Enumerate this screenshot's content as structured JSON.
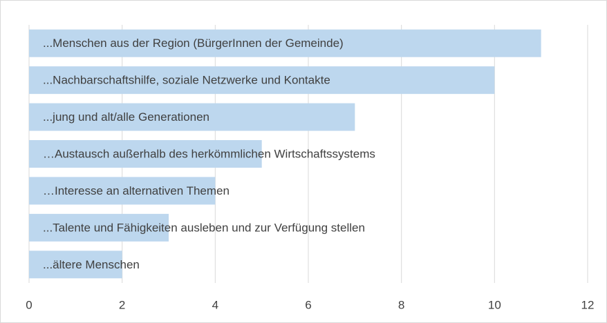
{
  "chart_data": {
    "type": "bar",
    "orientation": "horizontal",
    "categories": [
      "...Menschen aus der Region (BürgerInnen der Gemeinde)",
      "...Nachbarschaftshilfe, soziale Netzwerke und Kontakte",
      "...jung und alt/alle Generationen",
      "…Austausch außerhalb des herkömmlichen Wirtschaftssystems",
      "…Interesse an alternativen Themen",
      "...Talente und Fähigkeiten ausleben und zur Verfügung stellen",
      "...ältere Menschen"
    ],
    "values": [
      11,
      10,
      7,
      5,
      4,
      3,
      2
    ],
    "color": "#bdd7ee",
    "xlim": [
      0,
      12
    ],
    "xticks": [
      0,
      2,
      4,
      6,
      8,
      10,
      12
    ],
    "grid": true
  }
}
